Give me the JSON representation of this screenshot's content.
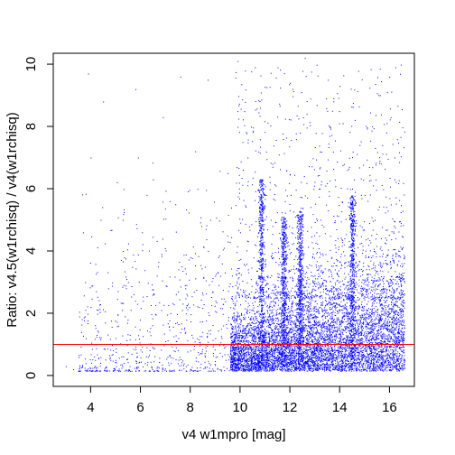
{
  "chart_data": {
    "type": "scatter",
    "title": "",
    "xlabel": "v4 w1mpro [mag]",
    "ylabel": "Ratio: v4.5(w1rchisq) / v4(w1rchisq)",
    "xlim": [
      2.5,
      17.0
    ],
    "ylim": [
      -0.35,
      10.35
    ],
    "x_ticks": [
      4,
      6,
      8,
      10,
      12,
      14,
      16
    ],
    "y_ticks": [
      0,
      2,
      4,
      6,
      8,
      10
    ],
    "x_tick_labels": [
      "4",
      "6",
      "8",
      "10",
      "12",
      "14",
      "16"
    ],
    "y_tick_labels": [
      "0",
      "2",
      "4",
      "6",
      "8",
      "10"
    ],
    "grid": false,
    "legend": "none",
    "point_color": "#0000ff",
    "reference_line": {
      "y": 1.0,
      "color": "#ff0000"
    },
    "series": [
      {
        "points_sample": [
          [
            3.0,
            0.3
          ],
          [
            3.3,
            0.2
          ],
          [
            3.9,
            9.7
          ],
          [
            4.0,
            2.2
          ],
          [
            4.0,
            7.0
          ],
          [
            4.2,
            1.0
          ],
          [
            4.3,
            1.4
          ],
          [
            4.4,
            5.0
          ],
          [
            4.5,
            8.8
          ],
          [
            4.7,
            2.8
          ],
          [
            5.0,
            1.2
          ],
          [
            5.0,
            0.5
          ],
          [
            5.1,
            1.6
          ],
          [
            5.3,
            4.0
          ],
          [
            5.5,
            3.0
          ],
          [
            5.8,
            9.2
          ],
          [
            5.9,
            7.0
          ],
          [
            6.0,
            1.0
          ],
          [
            6.1,
            2.4
          ],
          [
            6.3,
            0.6
          ],
          [
            6.5,
            6.3
          ],
          [
            6.7,
            3.5
          ],
          [
            6.9,
            8.3
          ],
          [
            7.0,
            1.1
          ],
          [
            7.2,
            2.0
          ],
          [
            7.4,
            5.5
          ],
          [
            7.6,
            9.6
          ],
          [
            7.8,
            1.4
          ],
          [
            8.0,
            0.8
          ],
          [
            8.0,
            3.8
          ],
          [
            8.2,
            7.2
          ],
          [
            8.5,
            2.6
          ],
          [
            8.7,
            9.5
          ],
          [
            8.8,
            5.0
          ],
          [
            9.0,
            1.2
          ],
          [
            9.2,
            3.2
          ],
          [
            9.5,
            6.5
          ],
          [
            9.7,
            2.4
          ],
          [
            9.9,
            10.1
          ],
          [
            10.0,
            4.6
          ],
          [
            10.3,
            7.0
          ],
          [
            10.6,
            9.9
          ],
          [
            10.8,
            5.2
          ],
          [
            10.8,
            8.6
          ],
          [
            11.0,
            3.5
          ],
          [
            11.3,
            6.8
          ],
          [
            11.6,
            4.4
          ],
          [
            11.8,
            5.6
          ],
          [
            12.0,
            9.4
          ],
          [
            12.4,
            4.9
          ],
          [
            12.4,
            7.8
          ],
          [
            12.6,
            10.2
          ],
          [
            12.9,
            3.8
          ],
          [
            13.2,
            6.0
          ],
          [
            13.5,
            8.5
          ],
          [
            13.8,
            4.2
          ],
          [
            14.0,
            9.3
          ],
          [
            14.3,
            6.6
          ],
          [
            14.5,
            6.0
          ],
          [
            14.8,
            7.4
          ],
          [
            15.0,
            5.8
          ],
          [
            15.3,
            8.0
          ],
          [
            15.6,
            6.9
          ],
          [
            15.9,
            9.1
          ],
          [
            16.0,
            5.7
          ],
          [
            16.2,
            6.3
          ],
          [
            16.4,
            4.0
          ],
          [
            16.6,
            3.0
          ]
        ]
      }
    ]
  }
}
